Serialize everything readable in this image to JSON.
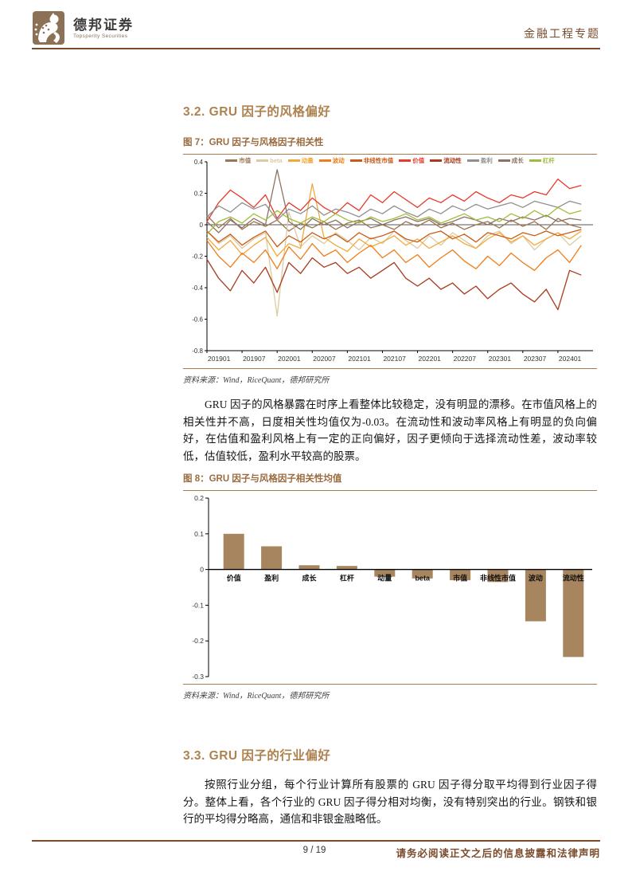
{
  "page": {
    "brand_cn": "德邦证券",
    "brand_en": "Topsperity Securities",
    "header_right": "金融工程专题",
    "footer": {
      "page_info": "9 / 19",
      "disclaimer": "请务必阅读正文之后的信息披露和法律声明"
    }
  },
  "section32": {
    "title": "3.2. GRU 因子的风格偏好"
  },
  "section33": {
    "title": "3.3. GRU 因子的行业偏好"
  },
  "paragraph1": "GRU 因子的风格暴露在时序上看整体比较稳定，没有明显的漂移。在市值风格上的相关性并不高，日度相关性均值仅为-0.03。在流动性和波动率风格上有明显的负向偏好，在估值和盈利风格上有一定的正向偏好，因子更倾向于选择流动性差，波动率较低，估值较低，盈利水平较高的股票。",
  "paragraph2": "按照行业分组，每个行业计算所有股票的 GRU 因子得分取平均得到行业因子得分。整体上看，各个行业的 GRU 因子得分相对均衡，没有特别突出的行业。钢铁和银行的平均得分略高，通信和非银金融略低。",
  "figure7": {
    "caption": "图 7：GRU 因子与风格因子相关性",
    "source": "资料来源：Wind，RiceQuant，德邦研究所",
    "chart_data": {
      "type": "line",
      "x_tick_labels": [
        "201901",
        "201907",
        "202001",
        "202007",
        "202101",
        "202107",
        "202201",
        "202207",
        "202301",
        "202307",
        "202401"
      ],
      "x_tick_months": [
        0,
        6,
        12,
        18,
        24,
        30,
        36,
        42,
        48,
        54,
        60
      ],
      "x_total_months": 66,
      "point_step_months": 2,
      "ylim": [
        -0.8,
        0.4
      ],
      "y_ticks": [
        0.4,
        0.2,
        0,
        -0.2,
        -0.4,
        -0.6,
        -0.8
      ],
      "grid": false,
      "legend_position": "top",
      "series": [
        {
          "name": "市值",
          "color": "#9B7653",
          "values": [
            0.06,
            -0.02,
            0.04,
            -0.03,
            0.02,
            -0.01,
            0.03,
            -0.04,
            0.01,
            -0.02,
            0.02,
            -0.03,
            0.01,
            0.03,
            -0.02,
            0.0,
            -0.03,
            0.02,
            -0.01,
            0.03,
            -0.02,
            0.01,
            -0.03,
            0.0,
            0.02,
            -0.02,
            0.03,
            -0.01,
            0.02,
            -0.03,
            0.04,
            0.0,
            -0.02
          ]
        },
        {
          "name": "beta",
          "color": "#DCCBA0",
          "values": [
            -0.04,
            -0.12,
            -0.07,
            -0.15,
            -0.09,
            -0.05,
            -0.58,
            0.08,
            -0.14,
            -0.07,
            -0.12,
            -0.05,
            -0.1,
            -0.16,
            -0.08,
            -0.12,
            -0.04,
            -0.1,
            -0.15,
            -0.07,
            -0.13,
            -0.05,
            -0.1,
            -0.15,
            -0.07,
            -0.04,
            -0.12,
            -0.07,
            -0.16,
            -0.09,
            -0.05,
            -0.13,
            -0.07
          ]
        },
        {
          "name": "动量",
          "color": "#F2A93B",
          "values": [
            -0.08,
            -0.16,
            -0.1,
            -0.19,
            -0.13,
            -0.08,
            -0.2,
            -0.12,
            -0.15,
            0.26,
            -0.08,
            -0.13,
            -0.17,
            -0.09,
            -0.14,
            -0.11,
            -0.07,
            -0.13,
            -0.09,
            -0.15,
            -0.11,
            -0.07,
            -0.12,
            -0.15,
            -0.09,
            -0.05,
            -0.11,
            -0.07,
            -0.13,
            -0.09,
            -0.05,
            -0.09,
            -0.04
          ]
        },
        {
          "name": "波动",
          "color": "#F07D1A",
          "values": [
            -0.1,
            -0.2,
            -0.27,
            -0.18,
            -0.24,
            -0.16,
            -0.28,
            -0.14,
            -0.22,
            -0.12,
            -0.2,
            -0.16,
            -0.24,
            -0.18,
            -0.13,
            -0.21,
            -0.16,
            -0.24,
            -0.19,
            -0.27,
            -0.21,
            -0.16,
            -0.23,
            -0.28,
            -0.2,
            -0.26,
            -0.18,
            -0.24,
            -0.29,
            -0.21,
            -0.16,
            -0.24,
            -0.13
          ]
        },
        {
          "name": "非线性市值",
          "color": "#C75B17",
          "values": [
            -0.04,
            -0.11,
            -0.06,
            -0.13,
            -0.08,
            -0.04,
            -0.14,
            -0.07,
            -0.11,
            -0.05,
            -0.09,
            -0.06,
            -0.11,
            -0.05,
            -0.09,
            -0.07,
            -0.04,
            -0.09,
            -0.11,
            -0.06,
            -0.04,
            -0.09,
            -0.06,
            -0.11,
            -0.05,
            -0.07,
            -0.09,
            -0.05,
            -0.07,
            -0.04,
            -0.07,
            -0.05,
            -0.03
          ]
        },
        {
          "name": "价值",
          "color": "#E8392B",
          "values": [
            0.02,
            0.14,
            0.22,
            0.17,
            0.11,
            0.19,
            0.04,
            0.14,
            0.09,
            0.17,
            0.11,
            0.07,
            0.14,
            0.09,
            0.19,
            0.14,
            0.21,
            0.16,
            0.11,
            0.17,
            0.14,
            0.19,
            0.15,
            0.21,
            0.17,
            0.14,
            0.19,
            0.17,
            0.21,
            0.19,
            0.29,
            0.23,
            0.25
          ]
        },
        {
          "name": "流动性",
          "color": "#A93A1C",
          "values": [
            -0.22,
            -0.34,
            -0.42,
            -0.29,
            -0.37,
            -0.27,
            -0.43,
            -0.24,
            -0.31,
            -0.21,
            -0.27,
            -0.24,
            -0.31,
            -0.27,
            -0.34,
            -0.29,
            -0.24,
            -0.34,
            -0.39,
            -0.34,
            -0.41,
            -0.37,
            -0.44,
            -0.39,
            -0.47,
            -0.41,
            -0.37,
            -0.44,
            -0.49,
            -0.41,
            -0.54,
            -0.29,
            -0.32
          ]
        },
        {
          "name": "盈利",
          "color": "#8F8F8F",
          "values": [
            0.05,
            0.12,
            0.08,
            0.14,
            0.1,
            0.13,
            0.03,
            0.1,
            0.07,
            0.12,
            0.06,
            0.1,
            0.08,
            0.05,
            0.1,
            0.07,
            0.12,
            0.08,
            0.05,
            0.1,
            0.07,
            0.12,
            0.09,
            0.13,
            0.1,
            0.12,
            0.14,
            0.11,
            0.15,
            0.13,
            0.11,
            0.15,
            0.13
          ]
        },
        {
          "name": "成长",
          "color": "#8D7263",
          "values": [
            0.02,
            -0.05,
            0.03,
            -0.02,
            0.04,
            0.0,
            0.35,
            0.02,
            -0.03,
            0.04,
            0.0,
            0.03,
            -0.02,
            0.02,
            0.04,
            0.0,
            0.03,
            0.05,
            0.02,
            0.04,
            0.0,
            0.02,
            0.05,
            0.03,
            0.0,
            0.04,
            0.02,
            0.05,
            0.03,
            0.06,
            0.02,
            0.04,
            0.03
          ]
        },
        {
          "name": "杠杆",
          "color": "#9EBE3A",
          "values": [
            -0.06,
            0.02,
            0.05,
            0.01,
            0.07,
            0.03,
            0.09,
            0.04,
            0.01,
            0.05,
            0.02,
            0.07,
            0.03,
            0.01,
            0.05,
            0.02,
            0.04,
            0.07,
            0.03,
            0.05,
            0.01,
            0.04,
            0.07,
            0.03,
            0.05,
            0.02,
            0.07,
            0.04,
            0.09,
            0.05,
            0.11,
            0.07,
            0.09
          ]
        }
      ]
    }
  },
  "figure8": {
    "caption": "图 8：GRU 因子与风格因子相关性均值",
    "source": "资料来源：Wind，RiceQuant，德邦研究所",
    "chart_data": {
      "type": "bar",
      "categories": [
        "价值",
        "盈利",
        "成长",
        "杠杆",
        "动量",
        "beta",
        "市值",
        "非线性市值",
        "波动",
        "流动性"
      ],
      "values": [
        0.1,
        0.065,
        0.012,
        0.01,
        -0.02,
        -0.025,
        -0.03,
        -0.035,
        -0.145,
        -0.245
      ],
      "ylim": [
        -0.3,
        0.2
      ],
      "y_ticks": [
        0.2,
        0.1,
        0,
        -0.1,
        -0.2,
        -0.3
      ],
      "grid": false,
      "bar_color": "#A7855E"
    }
  },
  "colors": {
    "accent_brown": "#7a4a2b",
    "section_title": "#ae8250",
    "figure_caption": "#9c6b3f",
    "thin_rule": "#a97c4f"
  }
}
